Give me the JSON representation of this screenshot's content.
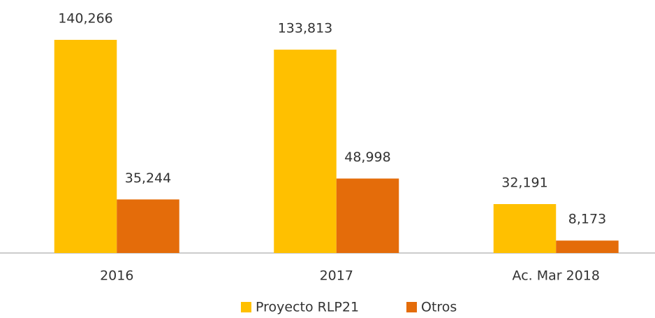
{
  "chart_data": {
    "type": "bar",
    "categories": [
      "2016",
      "2017",
      "Ac. Mar 2018"
    ],
    "series": [
      {
        "name": "Proyecto RLP21",
        "color": "#ffc000",
        "values": [
          140266,
          133813,
          32191
        ],
        "value_labels": [
          "140,266",
          "133,813",
          "32,191"
        ]
      },
      {
        "name": "Otros",
        "color": "#e46c0a",
        "values": [
          35244,
          48998,
          8173
        ],
        "value_labels": [
          "35,244",
          "48,998",
          "8,173"
        ]
      }
    ],
    "legend": "bottom"
  }
}
